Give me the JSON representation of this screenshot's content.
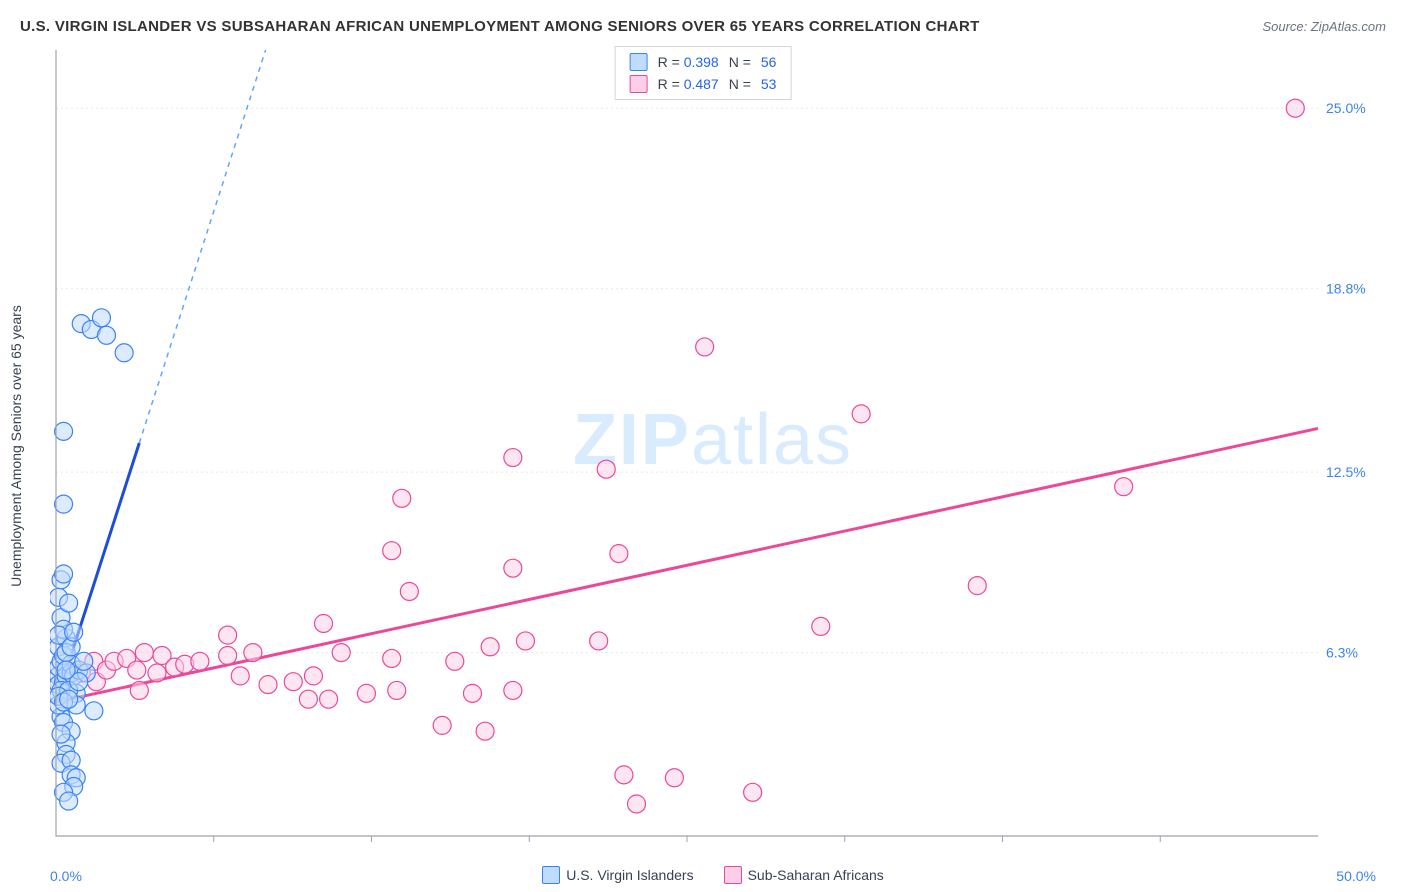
{
  "title": "U.S. VIRGIN ISLANDER VS SUBSAHARAN AFRICAN UNEMPLOYMENT AMONG SENIORS OVER 65 YEARS CORRELATION CHART",
  "source_prefix": "Source: ",
  "source_link": "ZipAtlas.com",
  "ylabel": "Unemployment Among Seniors over 65 years",
  "watermark_a": "ZIP",
  "watermark_b": "atlas",
  "chart": {
    "type": "scatter",
    "xlim": [
      0,
      50
    ],
    "ylim": [
      0,
      27
    ],
    "x_tick_minor": [
      6.25,
      12.5,
      18.75,
      25,
      31.25,
      37.5,
      43.75
    ],
    "y_ticks": [
      6.3,
      12.5,
      18.8,
      25.0
    ],
    "y_tick_labels": [
      "6.3%",
      "12.5%",
      "18.8%",
      "25.0%"
    ],
    "x_left_label": "0.0%",
    "x_right_label": "50.0%",
    "grid_color": "#e5e7eb",
    "border_color": "#9ca3af",
    "marker_radius": 9,
    "series": [
      {
        "name": "U.S. Virgin Islanders",
        "color_stroke": "#3b82f6",
        "color_fill": "#bfdbfe",
        "R": "0.398",
        "N": "56",
        "trend": {
          "x1": 0,
          "y1": 4.6,
          "x2": 3.3,
          "y2": 13.5,
          "dash_to_y": 27
        },
        "points": [
          {
            "x": 0.1,
            "y": 5.5
          },
          {
            "x": 0.1,
            "y": 5.8
          },
          {
            "x": 0.1,
            "y": 5.2
          },
          {
            "x": 0.2,
            "y": 6.0
          },
          {
            "x": 0.3,
            "y": 5.3
          },
          {
            "x": 0.4,
            "y": 5.5
          },
          {
            "x": 0.2,
            "y": 4.1
          },
          {
            "x": 0.6,
            "y": 5.6
          },
          {
            "x": 0.1,
            "y": 6.5
          },
          {
            "x": 0.3,
            "y": 6.2
          },
          {
            "x": 0.6,
            "y": 5.9
          },
          {
            "x": 0.4,
            "y": 6.8
          },
          {
            "x": 0.7,
            "y": 5.5
          },
          {
            "x": 0.9,
            "y": 5.7
          },
          {
            "x": 1.2,
            "y": 5.6
          },
          {
            "x": 0.8,
            "y": 4.9
          },
          {
            "x": 0.2,
            "y": 7.5
          },
          {
            "x": 0.3,
            "y": 7.1
          },
          {
            "x": 0.1,
            "y": 8.2
          },
          {
            "x": 0.5,
            "y": 8.0
          },
          {
            "x": 0.2,
            "y": 8.8
          },
          {
            "x": 0.3,
            "y": 9.0
          },
          {
            "x": 0.3,
            "y": 11.4
          },
          {
            "x": 0.3,
            "y": 13.9
          },
          {
            "x": 1.0,
            "y": 17.6
          },
          {
            "x": 1.4,
            "y": 17.4
          },
          {
            "x": 1.8,
            "y": 17.8
          },
          {
            "x": 2.0,
            "y": 17.2
          },
          {
            "x": 2.7,
            "y": 16.6
          },
          {
            "x": 0.1,
            "y": 4.5
          },
          {
            "x": 0.3,
            "y": 3.9
          },
          {
            "x": 0.6,
            "y": 3.6
          },
          {
            "x": 0.4,
            "y": 3.2
          },
          {
            "x": 0.4,
            "y": 2.8
          },
          {
            "x": 0.2,
            "y": 2.5
          },
          {
            "x": 0.6,
            "y": 2.6
          },
          {
            "x": 0.6,
            "y": 2.1
          },
          {
            "x": 0.8,
            "y": 2.0
          },
          {
            "x": 0.7,
            "y": 1.7
          },
          {
            "x": 0.3,
            "y": 1.5
          },
          {
            "x": 0.5,
            "y": 1.2
          },
          {
            "x": 0.8,
            "y": 4.5
          },
          {
            "x": 1.5,
            "y": 4.3
          },
          {
            "x": 1.1,
            "y": 6.0
          },
          {
            "x": 0.2,
            "y": 5.0
          },
          {
            "x": 0.5,
            "y": 5.0
          },
          {
            "x": 0.4,
            "y": 6.3
          },
          {
            "x": 0.1,
            "y": 6.9
          },
          {
            "x": 0.6,
            "y": 6.5
          },
          {
            "x": 0.1,
            "y": 4.8
          },
          {
            "x": 0.9,
            "y": 5.3
          },
          {
            "x": 0.4,
            "y": 5.7
          },
          {
            "x": 0.3,
            "y": 4.6
          },
          {
            "x": 0.5,
            "y": 4.7
          },
          {
            "x": 0.2,
            "y": 3.5
          },
          {
            "x": 0.7,
            "y": 7.0
          }
        ]
      },
      {
        "name": "Sub-Saharan Africans",
        "color_stroke": "#ec4899",
        "color_fill": "#fbcfe8",
        "R": "0.487",
        "N": "53",
        "trend": {
          "x1": 0,
          "y1": 4.6,
          "x2": 50,
          "y2": 14.0
        },
        "points": [
          {
            "x": 1.0,
            "y": 5.6
          },
          {
            "x": 1.5,
            "y": 6.0
          },
          {
            "x": 1.6,
            "y": 5.3
          },
          {
            "x": 2.0,
            "y": 5.7
          },
          {
            "x": 2.3,
            "y": 6.0
          },
          {
            "x": 2.8,
            "y": 6.1
          },
          {
            "x": 3.2,
            "y": 5.7
          },
          {
            "x": 3.3,
            "y": 5.0
          },
          {
            "x": 3.5,
            "y": 6.3
          },
          {
            "x": 4.0,
            "y": 5.6
          },
          {
            "x": 4.2,
            "y": 6.2
          },
          {
            "x": 4.7,
            "y": 5.8
          },
          {
            "x": 5.1,
            "y": 5.9
          },
          {
            "x": 5.7,
            "y": 6.0
          },
          {
            "x": 6.8,
            "y": 6.2
          },
          {
            "x": 7.3,
            "y": 5.5
          },
          {
            "x": 7.8,
            "y": 6.3
          },
          {
            "x": 6.8,
            "y": 6.9
          },
          {
            "x": 8.4,
            "y": 5.2
          },
          {
            "x": 9.4,
            "y": 5.3
          },
          {
            "x": 10.2,
            "y": 5.5
          },
          {
            "x": 10.0,
            "y": 4.7
          },
          {
            "x": 10.8,
            "y": 4.7
          },
          {
            "x": 10.6,
            "y": 7.3
          },
          {
            "x": 11.3,
            "y": 6.3
          },
          {
            "x": 13.3,
            "y": 6.1
          },
          {
            "x": 13.5,
            "y": 5.0
          },
          {
            "x": 13.3,
            "y": 9.8
          },
          {
            "x": 13.7,
            "y": 11.6
          },
          {
            "x": 14.0,
            "y": 8.4
          },
          {
            "x": 15.3,
            "y": 3.8
          },
          {
            "x": 15.8,
            "y": 6.0
          },
          {
            "x": 16.5,
            "y": 4.9
          },
          {
            "x": 17.0,
            "y": 3.6
          },
          {
            "x": 17.2,
            "y": 6.5
          },
          {
            "x": 18.1,
            "y": 5.0
          },
          {
            "x": 18.1,
            "y": 9.2
          },
          {
            "x": 18.1,
            "y": 13.0
          },
          {
            "x": 18.6,
            "y": 6.7
          },
          {
            "x": 21.5,
            "y": 6.7
          },
          {
            "x": 21.8,
            "y": 12.6
          },
          {
            "x": 22.3,
            "y": 9.7
          },
          {
            "x": 22.5,
            "y": 2.1
          },
          {
            "x": 23.0,
            "y": 1.1
          },
          {
            "x": 24.5,
            "y": 2.0
          },
          {
            "x": 25.7,
            "y": 16.8
          },
          {
            "x": 27.6,
            "y": 1.5
          },
          {
            "x": 30.3,
            "y": 7.2
          },
          {
            "x": 31.9,
            "y": 14.5
          },
          {
            "x": 36.5,
            "y": 8.6
          },
          {
            "x": 42.3,
            "y": 12.0
          },
          {
            "x": 49.1,
            "y": 25.0
          },
          {
            "x": 12.3,
            "y": 4.9
          }
        ]
      }
    ]
  }
}
